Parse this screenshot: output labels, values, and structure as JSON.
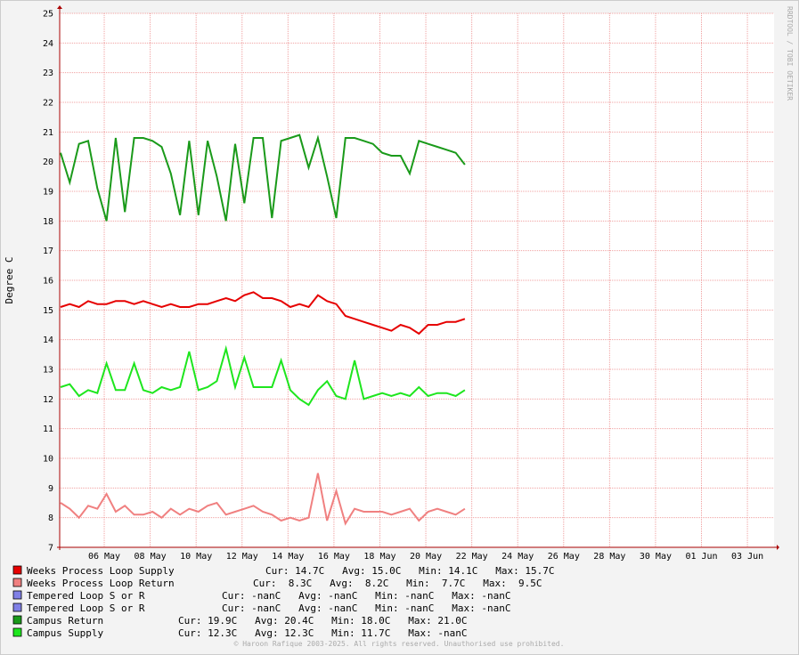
{
  "chart_data": {
    "type": "line",
    "y_label": "Degree C",
    "side_text": "RRDTOOL / TOBI OETIKER",
    "footer": "© Haroon Rafique 2003-2025. All rights reserved. Unauthorised use prohibited.",
    "x": [
      4.1,
      4.5,
      4.9,
      5.3,
      5.7,
      6.1,
      6.5,
      6.9,
      7.3,
      7.7,
      8.1,
      8.5,
      8.9,
      9.3,
      9.7,
      10.1,
      10.5,
      10.9,
      11.3,
      11.7,
      12.1,
      12.5,
      12.9,
      13.3,
      13.7,
      14.1,
      14.5,
      14.9,
      15.3,
      15.7,
      16.1,
      16.5,
      16.9,
      17.3,
      17.7,
      18.1,
      18.5,
      18.9,
      19.3,
      19.7,
      20.1,
      20.5,
      20.9,
      21.3,
      21.7
    ],
    "xlim": [
      4.06,
      35.16
    ],
    "xticks": [
      {
        "value": 6,
        "label": "06 May"
      },
      {
        "value": 8,
        "label": "08 May"
      },
      {
        "value": 10,
        "label": "10 May"
      },
      {
        "value": 12,
        "label": "12 May"
      },
      {
        "value": 14,
        "label": "14 May"
      },
      {
        "value": 16,
        "label": "16 May"
      },
      {
        "value": 18,
        "label": "18 May"
      },
      {
        "value": 20,
        "label": "20 May"
      },
      {
        "value": 22,
        "label": "22 May"
      },
      {
        "value": 24,
        "label": "24 May"
      },
      {
        "value": 26,
        "label": "26 May"
      },
      {
        "value": 28,
        "label": "28 May"
      },
      {
        "value": 30,
        "label": "30 May"
      },
      {
        "value": 32,
        "label": "01 Jun"
      },
      {
        "value": 34,
        "label": "03 Jun"
      }
    ],
    "ylim": [
      7,
      25
    ],
    "yticks": [
      7,
      8,
      9,
      10,
      11,
      12,
      13,
      14,
      15,
      16,
      17,
      18,
      19,
      20,
      21,
      22,
      23,
      24,
      25
    ],
    "grid": true,
    "series": [
      {
        "name": "Weeks Process Loop Supply",
        "color": "#e60000",
        "stats": "Cur: 14.7C   Avg: 15.0C   Min: 14.1C   Max: 15.7C",
        "values": [
          15.1,
          15.2,
          15.1,
          15.3,
          15.2,
          15.2,
          15.3,
          15.3,
          15.2,
          15.3,
          15.2,
          15.1,
          15.2,
          15.1,
          15.1,
          15.2,
          15.2,
          15.3,
          15.4,
          15.3,
          15.5,
          15.6,
          15.4,
          15.4,
          15.3,
          15.1,
          15.2,
          15.1,
          15.5,
          15.3,
          15.2,
          14.8,
          14.7,
          14.6,
          14.5,
          14.4,
          14.3,
          14.5,
          14.4,
          14.2,
          14.5,
          14.5,
          14.6,
          14.6,
          14.7
        ]
      },
      {
        "name": "Weeks Process Loop Return",
        "color": "#f08080",
        "stats": "Cur:  8.3C   Avg:  8.2C   Min:  7.7C   Max:  9.5C",
        "values": [
          8.5,
          8.3,
          8.0,
          8.4,
          8.3,
          8.8,
          8.2,
          8.4,
          8.1,
          8.1,
          8.2,
          8.0,
          8.3,
          8.1,
          8.3,
          8.2,
          8.4,
          8.5,
          8.1,
          8.2,
          8.3,
          8.4,
          8.2,
          8.1,
          7.9,
          8.0,
          7.9,
          8.0,
          9.5,
          7.9,
          8.9,
          7.8,
          8.3,
          8.2,
          8.2,
          8.2,
          8.1,
          8.2,
          8.3,
          7.9,
          8.2,
          8.3,
          8.2,
          8.1,
          8.3
        ]
      },
      {
        "name": "Tempered Loop S or R",
        "color": "#8080e6",
        "stats": "Cur: -nanC   Avg: -nanC   Min: -nanC   Max: -nanC",
        "values": [
          null,
          null,
          null,
          null,
          null,
          null,
          null,
          null,
          null,
          null,
          null,
          null,
          null,
          null,
          null,
          null,
          null,
          null,
          null,
          null,
          null,
          null,
          null,
          null,
          null,
          null,
          null,
          null,
          null,
          null,
          null,
          null,
          null,
          null,
          null,
          null,
          null,
          null,
          null,
          null,
          null,
          null,
          null,
          null,
          null
        ]
      },
      {
        "name": "Tempered Loop S or R",
        "color": "#8080e6",
        "stats": "Cur: -nanC   Avg: -nanC   Min: -nanC   Max: -nanC",
        "values": [
          null,
          null,
          null,
          null,
          null,
          null,
          null,
          null,
          null,
          null,
          null,
          null,
          null,
          null,
          null,
          null,
          null,
          null,
          null,
          null,
          null,
          null,
          null,
          null,
          null,
          null,
          null,
          null,
          null,
          null,
          null,
          null,
          null,
          null,
          null,
          null,
          null,
          null,
          null,
          null,
          null,
          null,
          null,
          null,
          null
        ]
      },
      {
        "name": "Campus Return",
        "color": "#1a9a1a",
        "stats": "Cur: 19.9C   Avg: 20.4C   Min: 18.0C   Max: 21.0C",
        "values": [
          20.3,
          19.3,
          20.6,
          20.7,
          19.1,
          18.0,
          20.8,
          18.3,
          20.8,
          20.8,
          20.7,
          20.5,
          19.6,
          18.2,
          20.7,
          18.2,
          20.7,
          19.5,
          18.0,
          20.6,
          18.6,
          20.8,
          20.8,
          18.1,
          20.7,
          20.8,
          20.9,
          19.8,
          20.8,
          19.5,
          18.1,
          20.8,
          20.8,
          20.7,
          20.6,
          20.3,
          20.2,
          20.2,
          19.6,
          20.7,
          20.6,
          20.5,
          20.4,
          20.3,
          19.9
        ]
      },
      {
        "name": "Campus Supply",
        "color": "#1ee61e",
        "stats": "Cur: 12.3C   Avg: 12.3C   Min: 11.7C   Max: -nanC",
        "values": [
          12.4,
          12.5,
          12.1,
          12.3,
          12.2,
          13.2,
          12.3,
          12.3,
          13.2,
          12.3,
          12.2,
          12.4,
          12.3,
          12.4,
          13.6,
          12.3,
          12.4,
          12.6,
          13.7,
          12.4,
          13.4,
          12.4,
          12.4,
          12.4,
          13.3,
          12.3,
          12.0,
          11.8,
          12.3,
          12.6,
          12.1,
          12.0,
          13.3,
          12.0,
          12.1,
          12.2,
          12.1,
          12.2,
          12.1,
          12.4,
          12.1,
          12.2,
          12.2,
          12.1,
          12.3
        ]
      }
    ]
  }
}
